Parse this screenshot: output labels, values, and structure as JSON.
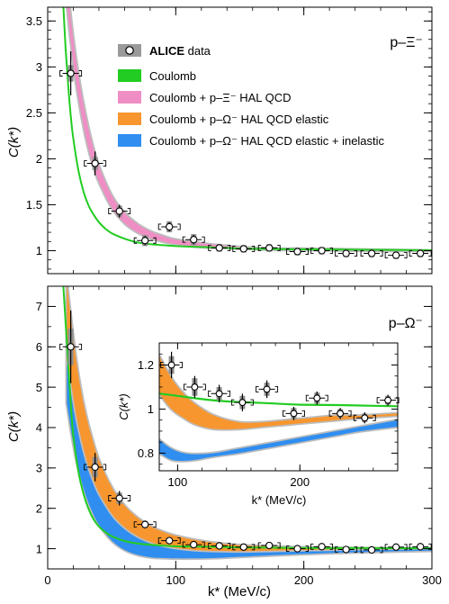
{
  "chart_data": [
    {
      "type": "line",
      "panel": "top",
      "system_label": "p–Ξ⁻",
      "xlabel": "",
      "ylabel": "C(k*)",
      "xlim": [
        0,
        300
      ],
      "ylim": [
        0.75,
        3.65
      ],
      "y_ticks": [
        "1",
        "1.5",
        "2",
        "2.5",
        "3",
        "3.5"
      ],
      "legend": {
        "placement": "top-center",
        "entries": [
          {
            "bold": "ALICE",
            "text": " data",
            "marker": "data"
          },
          {
            "text": "Coulomb",
            "color": "#22cc22"
          },
          {
            "text": "Coulomb + p–Ξ⁻ HAL QCD",
            "color": "#ef8ec4"
          },
          {
            "text": "Coulomb + p–Ω⁻ HAL QCD elastic",
            "color": "#f7962f"
          },
          {
            "text": "Coulomb + p–Ω⁻ HAL QCD elastic + inelastic",
            "color": "#2f8ef0"
          }
        ]
      },
      "data_points": [
        {
          "x": 18,
          "y": 2.93,
          "stat": 0.24,
          "syst": 0.09
        },
        {
          "x": 37,
          "y": 1.95,
          "stat": 0.13,
          "syst": 0.07
        },
        {
          "x": 56,
          "y": 1.43,
          "stat": 0.07,
          "syst": 0.06
        },
        {
          "x": 76,
          "y": 1.11,
          "stat": 0.05,
          "syst": 0.06
        },
        {
          "x": 95,
          "y": 1.26,
          "stat": 0.05,
          "syst": 0.06
        },
        {
          "x": 114,
          "y": 1.12,
          "stat": 0.05,
          "syst": 0.06
        },
        {
          "x": 134,
          "y": 1.03,
          "stat": 0.03,
          "syst": 0.04
        },
        {
          "x": 153,
          "y": 1.02,
          "stat": 0.03,
          "syst": 0.04
        },
        {
          "x": 173,
          "y": 1.03,
          "stat": 0.03,
          "syst": 0.04
        },
        {
          "x": 195,
          "y": 0.99,
          "stat": 0.03,
          "syst": 0.04
        },
        {
          "x": 214,
          "y": 1.0,
          "stat": 0.03,
          "syst": 0.04
        },
        {
          "x": 233,
          "y": 0.97,
          "stat": 0.03,
          "syst": 0.04
        },
        {
          "x": 253,
          "y": 0.97,
          "stat": 0.03,
          "syst": 0.04
        },
        {
          "x": 272,
          "y": 0.95,
          "stat": 0.03,
          "syst": 0.04
        },
        {
          "x": 291,
          "y": 0.97,
          "stat": 0.03,
          "syst": 0.04
        }
      ],
      "curves": [
        {
          "name": "Coulomb + p–Ξ⁻ HAL QCD",
          "color": "#ef8ec4",
          "x": [
            10,
            15,
            20,
            25,
            30,
            35,
            40,
            50,
            60,
            70,
            80,
            90,
            100,
            120,
            140,
            160,
            180,
            200,
            250,
            300
          ],
          "lower": [
            4.6,
            3.7,
            3.05,
            2.58,
            2.22,
            1.95,
            1.75,
            1.47,
            1.3,
            1.2,
            1.14,
            1.1,
            1.07,
            1.04,
            1.03,
            1.02,
            1.01,
            1.01,
            1.0,
            1.0
          ],
          "upper": [
            4.9,
            3.95,
            3.3,
            2.82,
            2.45,
            2.15,
            1.92,
            1.6,
            1.41,
            1.29,
            1.21,
            1.16,
            1.12,
            1.08,
            1.05,
            1.03,
            1.02,
            1.02,
            1.01,
            1.0
          ]
        },
        {
          "name": "Coulomb",
          "color": "#22cc22",
          "x": [
            12,
            14,
            16,
            18,
            20,
            24,
            28,
            32,
            36,
            40,
            45,
            50,
            60,
            70,
            80,
            90,
            100,
            120,
            140,
            160,
            200,
            250,
            300
          ],
          "y": [
            3.72,
            3.2,
            2.8,
            2.47,
            2.22,
            1.87,
            1.64,
            1.49,
            1.39,
            1.31,
            1.24,
            1.19,
            1.13,
            1.09,
            1.07,
            1.06,
            1.05,
            1.04,
            1.03,
            1.02,
            1.015,
            1.01,
            1.005
          ]
        }
      ]
    },
    {
      "type": "line",
      "panel": "bottom",
      "system_label": "p–Ω⁻",
      "xlabel": "k* (MeV/c)",
      "ylabel": "C(k*)",
      "xlim": [
        0,
        300
      ],
      "ylim": [
        0.5,
        7.5
      ],
      "x_ticks": [
        "0",
        "100",
        "200",
        "300"
      ],
      "y_ticks": [
        "1",
        "2",
        "3",
        "4",
        "5",
        "6",
        "7"
      ],
      "data_points": [
        {
          "x": 18,
          "y": 6.0,
          "stat": 0.9,
          "syst": 0.45
        },
        {
          "x": 37,
          "y": 3.02,
          "stat": 0.35,
          "syst": 0.25
        },
        {
          "x": 56,
          "y": 2.25,
          "stat": 0.18,
          "syst": 0.14
        },
        {
          "x": 76,
          "y": 1.6,
          "stat": 0.1,
          "syst": 0.09
        },
        {
          "x": 95,
          "y": 1.2,
          "stat": 0.06,
          "syst": 0.06
        },
        {
          "x": 114,
          "y": 1.1,
          "stat": 0.05,
          "syst": 0.05
        },
        {
          "x": 134,
          "y": 1.07,
          "stat": 0.04,
          "syst": 0.04
        },
        {
          "x": 153,
          "y": 1.04,
          "stat": 0.04,
          "syst": 0.04
        },
        {
          "x": 173,
          "y": 1.08,
          "stat": 0.04,
          "syst": 0.04
        },
        {
          "x": 195,
          "y": 1.0,
          "stat": 0.03,
          "syst": 0.03
        },
        {
          "x": 214,
          "y": 1.05,
          "stat": 0.03,
          "syst": 0.03
        },
        {
          "x": 233,
          "y": 0.98,
          "stat": 0.03,
          "syst": 0.03
        },
        {
          "x": 253,
          "y": 0.97,
          "stat": 0.03,
          "syst": 0.03
        },
        {
          "x": 272,
          "y": 1.04,
          "stat": 0.03,
          "syst": 0.03
        },
        {
          "x": 291,
          "y": 1.05,
          "stat": 0.03,
          "syst": 0.03
        }
      ],
      "curves": [
        {
          "name": "Coulomb + p–Ω⁻ HAL QCD elastic",
          "color": "#f7962f",
          "x": [
            15,
            20,
            25,
            30,
            35,
            40,
            50,
            60,
            70,
            80,
            90,
            100,
            120,
            140,
            160,
            180,
            200,
            250,
            300
          ],
          "lower": [
            5.3,
            4.1,
            3.3,
            2.75,
            2.35,
            2.05,
            1.62,
            1.36,
            1.2,
            1.08,
            1.0,
            0.96,
            0.92,
            0.91,
            0.92,
            0.93,
            0.95,
            0.98,
            0.99
          ],
          "upper": [
            7.6,
            6.2,
            5.1,
            4.3,
            3.7,
            3.2,
            2.52,
            2.07,
            1.77,
            1.56,
            1.42,
            1.32,
            1.19,
            1.11,
            1.07,
            1.05,
            1.03,
            1.01,
            1.0
          ]
        },
        {
          "name": "Coulomb + p–Ω⁻ HAL QCD elastic + inelastic",
          "color": "#2f8ef0",
          "x": [
            15,
            20,
            25,
            30,
            35,
            40,
            50,
            60,
            70,
            80,
            90,
            100,
            115,
            130,
            150,
            170,
            200,
            250,
            300
          ],
          "lower": [
            4.6,
            3.6,
            2.85,
            2.3,
            1.9,
            1.6,
            1.2,
            0.97,
            0.85,
            0.79,
            0.77,
            0.76,
            0.76,
            0.77,
            0.8,
            0.83,
            0.87,
            0.92,
            0.95
          ],
          "upper": [
            5.6,
            4.5,
            3.7,
            3.1,
            2.65,
            2.3,
            1.8,
            1.48,
            1.27,
            1.13,
            1.04,
            0.98,
            0.93,
            0.91,
            0.9,
            0.91,
            0.93,
            0.96,
            0.98
          ]
        },
        {
          "name": "Coulomb",
          "color": "#22cc22",
          "x": [
            12,
            14,
            16,
            18,
            20,
            24,
            28,
            32,
            36,
            40,
            45,
            50,
            60,
            70,
            80,
            90,
            100,
            120,
            140,
            160,
            200,
            250,
            300
          ],
          "y": [
            7.6,
            6.6,
            5.6,
            4.6,
            3.8,
            2.9,
            2.35,
            1.98,
            1.72,
            1.55,
            1.41,
            1.31,
            1.19,
            1.13,
            1.1,
            1.08,
            1.06,
            1.05,
            1.04,
            1.03,
            1.02,
            1.015,
            1.01
          ]
        }
      ],
      "inset": {
        "xlabel": "k* (MeV/c)",
        "ylabel": "C(k*)",
        "xlim": [
          85,
          280
        ],
        "ylim": [
          0.72,
          1.3
        ],
        "x_ticks": [
          "100",
          "200"
        ],
        "y_ticks": [
          "0.8",
          "1",
          "1.2"
        ],
        "data_points": [
          {
            "x": 95,
            "y": 1.2,
            "stat": 0.06,
            "syst": 0.04
          },
          {
            "x": 114,
            "y": 1.1,
            "stat": 0.05,
            "syst": 0.04
          },
          {
            "x": 134,
            "y": 1.07,
            "stat": 0.04,
            "syst": 0.03
          },
          {
            "x": 153,
            "y": 1.03,
            "stat": 0.04,
            "syst": 0.03
          },
          {
            "x": 173,
            "y": 1.09,
            "stat": 0.04,
            "syst": 0.03
          },
          {
            "x": 195,
            "y": 0.98,
            "stat": 0.03,
            "syst": 0.025
          },
          {
            "x": 214,
            "y": 1.05,
            "stat": 0.03,
            "syst": 0.025
          },
          {
            "x": 233,
            "y": 0.98,
            "stat": 0.025,
            "syst": 0.02
          },
          {
            "x": 253,
            "y": 0.96,
            "stat": 0.025,
            "syst": 0.02
          },
          {
            "x": 272,
            "y": 1.04,
            "stat": 0.025,
            "syst": 0.02
          }
        ],
        "curves": [
          {
            "name": "Coulomb + p–Ω⁻ HAL QCD elastic",
            "color": "#f7962f",
            "x": [
              85,
              95,
              105,
              115,
              130,
              150,
              170,
              190,
              210,
              230,
              250,
              280
            ],
            "lower": [
              1.07,
              1.0,
              0.96,
              0.93,
              0.91,
              0.91,
              0.92,
              0.93,
              0.94,
              0.95,
              0.96,
              0.97
            ],
            "upper": [
              1.24,
              1.14,
              1.07,
              1.02,
              0.97,
              0.94,
              0.94,
              0.95,
              0.96,
              0.97,
              0.97,
              0.98
            ]
          },
          {
            "name": "Coulomb + p–Ω⁻ HAL QCD elastic + inelastic",
            "color": "#2f8ef0",
            "x": [
              85,
              95,
              105,
              115,
              130,
              150,
              170,
              190,
              210,
              230,
              250,
              280
            ],
            "lower": [
              0.8,
              0.77,
              0.765,
              0.77,
              0.785,
              0.8,
              0.82,
              0.84,
              0.86,
              0.88,
              0.9,
              0.92
            ],
            "upper": [
              0.86,
              0.82,
              0.8,
              0.795,
              0.8,
              0.82,
              0.84,
              0.86,
              0.88,
              0.9,
              0.92,
              0.95
            ]
          },
          {
            "name": "Coulomb",
            "color": "#22cc22",
            "x": [
              85,
              100,
              120,
              140,
              160,
              180,
              200,
              230,
              260,
              280
            ],
            "y": [
              1.07,
              1.06,
              1.045,
              1.035,
              1.03,
              1.025,
              1.02,
              1.018,
              1.015,
              1.013
            ]
          }
        ]
      }
    }
  ]
}
